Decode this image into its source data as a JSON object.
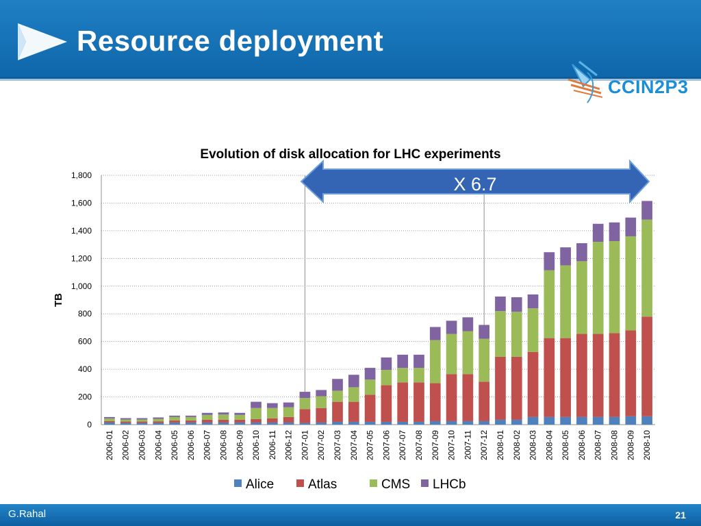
{
  "slide": {
    "title": "Resource deployment",
    "logo_text": "CCIN2P3",
    "author": "G.Rahal",
    "page_number": "21",
    "colors": {
      "header": "#1874bd",
      "footer": "#1a78be",
      "alice": "#4f81bd",
      "atlas": "#c0504d",
      "cms": "#9bbb59",
      "lhcb": "#8064a2",
      "arrow": "#3465b4"
    }
  },
  "chart_data": {
    "type": "bar",
    "stacked": true,
    "title": "Evolution of disk allocation for LHC experiments",
    "xlabel": "",
    "ylabel": "TB",
    "ylim": [
      0,
      1800
    ],
    "yticks": [
      0,
      200,
      400,
      600,
      800,
      1000,
      1200,
      1400,
      1600,
      1800
    ],
    "ytick_labels": [
      "0",
      "200",
      "400",
      "600",
      "800",
      "1,000",
      "1,200",
      "1,400",
      "1,600",
      "1,800"
    ],
    "grid": true,
    "legend": "bottom",
    "categories": [
      "2006-01",
      "2006-02",
      "2006-03",
      "2006-04",
      "2006-05",
      "2006-06",
      "2006-07",
      "2006-08",
      "2006-09",
      "2006-10",
      "2006-11",
      "2006-12",
      "2007-01",
      "2007-02",
      "2007-03",
      "2007-04",
      "2007-05",
      "2007-06",
      "2007-07",
      "2007-08",
      "2007-09",
      "2007-10",
      "2007-11",
      "2007-12",
      "2008-01",
      "2008-02",
      "2008-03",
      "2008-04",
      "2008-05",
      "2008-06",
      "2008-07",
      "2008-08",
      "2008-09",
      "2008-10"
    ],
    "series": [
      {
        "name": "Alice",
        "values": [
          15,
          12,
          12,
          12,
          15,
          15,
          15,
          15,
          15,
          15,
          15,
          15,
          12,
          15,
          20,
          20,
          20,
          20,
          20,
          20,
          25,
          25,
          25,
          25,
          35,
          35,
          55,
          55,
          55,
          55,
          55,
          55,
          60,
          60
        ]
      },
      {
        "name": "Atlas",
        "values": [
          10,
          10,
          10,
          12,
          15,
          15,
          20,
          20,
          20,
          25,
          30,
          40,
          100,
          105,
          145,
          145,
          195,
          265,
          285,
          285,
          275,
          340,
          340,
          285,
          455,
          455,
          470,
          570,
          570,
          600,
          600,
          605,
          620,
          720
        ]
      },
      {
        "name": "CMS",
        "values": [
          20,
          15,
          15,
          18,
          25,
          25,
          35,
          38,
          35,
          80,
          75,
          70,
          80,
          85,
          80,
          105,
          110,
          110,
          105,
          105,
          310,
          290,
          310,
          310,
          330,
          325,
          315,
          490,
          525,
          525,
          665,
          665,
          680,
          700
        ]
      },
      {
        "name": "LHCb",
        "values": [
          10,
          10,
          10,
          10,
          10,
          10,
          15,
          15,
          15,
          45,
          35,
          35,
          45,
          45,
          85,
          90,
          85,
          90,
          95,
          95,
          95,
          95,
          100,
          100,
          105,
          105,
          100,
          130,
          130,
          130,
          130,
          135,
          135,
          135
        ]
      }
    ],
    "annotations": [
      {
        "text": "X 6.7",
        "from": "2007-01",
        "to": "2008-10"
      }
    ],
    "reference_lines": [
      "2007-01",
      "2007-12"
    ]
  }
}
